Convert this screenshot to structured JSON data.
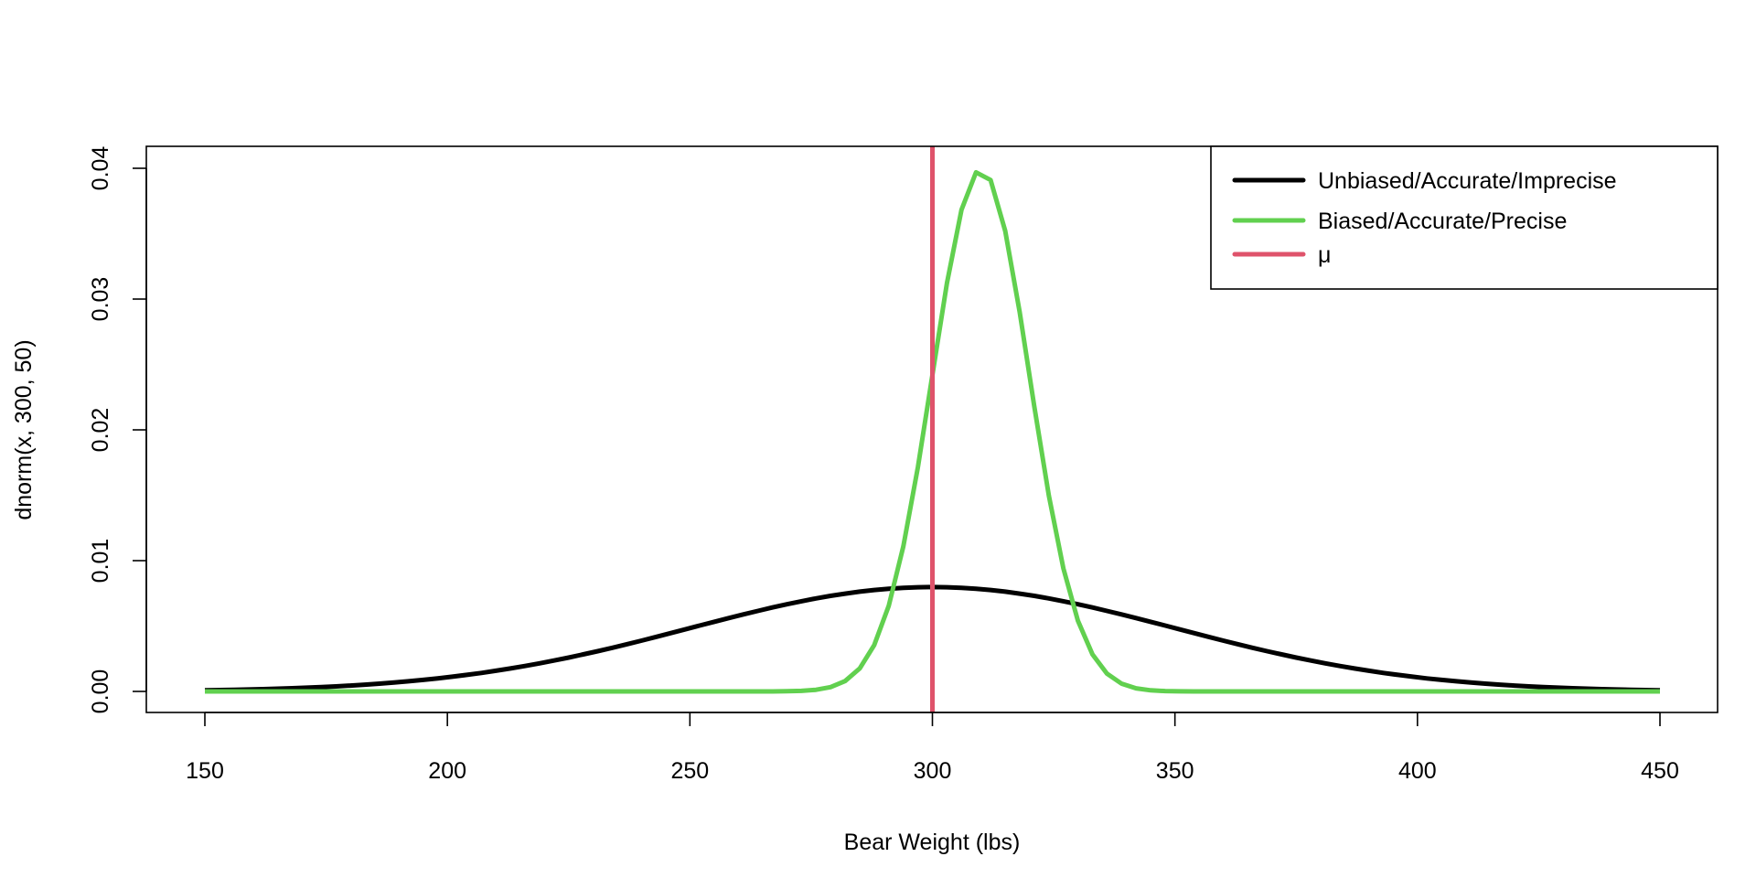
{
  "chart_data": {
    "type": "line",
    "title": "",
    "xlabel": "Bear Weight (lbs)",
    "ylabel": "dnorm(x, 300, 50)",
    "xlim": [
      150,
      450
    ],
    "ylim": [
      0,
      0.04
    ],
    "xticks": [
      "150",
      "200",
      "250",
      "300",
      "350",
      "400",
      "450"
    ],
    "yticks": [
      "0.00",
      "0.01",
      "0.02",
      "0.03",
      "0.04"
    ],
    "grid": false,
    "legend_position": "top-right",
    "x": [
      150,
      153,
      156,
      159,
      162,
      165,
      168,
      171,
      174,
      177,
      180,
      183,
      186,
      189,
      192,
      195,
      198,
      201,
      204,
      207,
      210,
      213,
      216,
      219,
      222,
      225,
      228,
      231,
      234,
      237,
      240,
      243,
      246,
      249,
      252,
      255,
      258,
      261,
      264,
      267,
      270,
      273,
      276,
      279,
      282,
      285,
      288,
      291,
      294,
      297,
      300,
      303,
      306,
      309,
      312,
      315,
      318,
      321,
      324,
      327,
      330,
      333,
      336,
      339,
      342,
      345,
      348,
      351,
      354,
      357,
      360,
      363,
      366,
      369,
      372,
      375,
      378,
      381,
      384,
      387,
      390,
      393,
      396,
      399,
      402,
      405,
      408,
      411,
      414,
      417,
      420,
      423,
      426,
      429,
      432,
      435,
      438,
      441,
      444,
      447,
      450
    ],
    "series": [
      {
        "name": "Unbiased/Accurate/Imprecise",
        "color": "#000000",
        "values": [
          8.86e-05,
          0.000106,
          0.000126,
          0.00015,
          0.000177,
          0.000208,
          0.000245,
          0.000286,
          0.000334,
          0.000387,
          0.000448,
          0.000516,
          0.000593,
          0.000679,
          0.000774,
          0.00088,
          0.000996,
          0.001124,
          0.001263,
          0.001415,
          0.001579,
          0.001756,
          0.001946,
          0.002148,
          0.002363,
          0.00259,
          0.002829,
          0.003079,
          0.003339,
          0.003607,
          0.003884,
          0.004166,
          0.004453,
          0.004743,
          0.005033,
          0.005322,
          0.005607,
          0.005886,
          0.006157,
          0.006417,
          0.006664,
          0.006896,
          0.007111,
          0.007305,
          0.007478,
          0.007628,
          0.007752,
          0.007851,
          0.007922,
          0.007964,
          0.007979,
          0.007964,
          0.007922,
          0.007851,
          0.007752,
          0.007628,
          0.007478,
          0.007305,
          0.007111,
          0.006896,
          0.006664,
          0.006417,
          0.006157,
          0.005886,
          0.005607,
          0.005322,
          0.005033,
          0.004743,
          0.004453,
          0.004166,
          0.003884,
          0.003607,
          0.003339,
          0.003079,
          0.002829,
          0.00259,
          0.002363,
          0.002148,
          0.001946,
          0.001756,
          0.001579,
          0.001415,
          0.001263,
          0.001124,
          0.000996,
          0.00088,
          0.000774,
          0.000679,
          0.000593,
          0.000516,
          0.000448,
          0.000387,
          0.000334,
          0.000286,
          0.000245,
          0.000208,
          0.000177,
          0.00015,
          0.000126,
          0.000106,
          8.86e-05
        ]
      },
      {
        "name": "Biased/Accurate/Precise",
        "color": "#61D04F",
        "values": [
          0,
          0,
          0,
          0,
          0,
          0,
          0,
          0,
          0,
          0,
          0,
          0,
          0,
          0,
          0,
          0,
          0,
          0,
          0,
          0,
          0,
          0,
          0,
          0,
          0,
          0,
          0,
          0,
          0,
          0,
          0,
          0,
          0,
          0,
          0,
          0,
          0,
          0,
          0,
          0,
          1.34e-05,
          4.25e-05,
          0.000123,
          0.000327,
          0.000792,
          0.001753,
          0.003547,
          0.006562,
          0.011092,
          0.017137,
          0.024197,
          0.031225,
          0.036827,
          0.039695,
          0.039104,
          0.035207,
          0.028969,
          0.021785,
          0.014973,
          0.009405,
          0.005399,
          0.002833,
          0.001358,
          0.000595,
          0.000238,
          8.73e-05,
          2.92e-05,
          8.9e-06,
          0,
          0,
          0,
          0,
          0,
          0,
          0,
          0,
          0,
          0,
          0,
          0,
          0,
          0,
          0,
          0,
          0,
          0,
          0,
          0,
          0,
          0,
          0,
          0,
          0,
          0,
          0,
          0,
          0,
          0,
          0,
          0,
          0
        ]
      }
    ],
    "vlines": [
      {
        "name": "μ",
        "x": 300,
        "color": "#DF536B"
      }
    ],
    "legend": [
      {
        "label": "Unbiased/Accurate/Imprecise",
        "color": "#000000"
      },
      {
        "label": "Biased/Accurate/Precise",
        "color": "#61D04F"
      },
      {
        "label": "μ",
        "color": "#DF536B"
      }
    ]
  }
}
